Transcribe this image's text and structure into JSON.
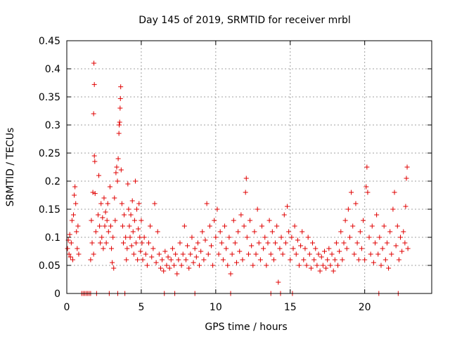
{
  "chart_data": {
    "type": "scatter",
    "title": "Day 145 of 2019, SRMTID for receiver mrbl",
    "xlabel": "GPS time / hours",
    "ylabel": "SRMTID / TECUs",
    "xlim": [
      0,
      24.5
    ],
    "ylim": [
      0,
      0.45
    ],
    "xticks": [
      0,
      5,
      10,
      15,
      20
    ],
    "xtick_labels": [
      "0",
      "5",
      "10",
      "15",
      "20"
    ],
    "yticks": [
      0,
      0.05,
      0.1,
      0.15,
      0.2,
      0.25,
      0.3,
      0.35,
      0.4,
      0.45
    ],
    "ytick_labels": [
      "0",
      "0.05",
      "0.1",
      "0.15",
      "0.2",
      "0.25",
      "0.3",
      "0.35",
      "0.4",
      "0.45"
    ],
    "grid": true,
    "marker": "+",
    "color": "#e00000",
    "series": [
      {
        "name": "SRMTID",
        "points": [
          [
            0.05,
            0.08
          ],
          [
            0.1,
            0.095
          ],
          [
            0.15,
            0.07
          ],
          [
            0.2,
            0.105
          ],
          [
            0.25,
            0.065
          ],
          [
            0.3,
            0.09
          ],
          [
            0.35,
            0.13
          ],
          [
            0.4,
            0.06
          ],
          [
            0.45,
            0.14
          ],
          [
            0.5,
            0.175
          ],
          [
            0.55,
            0.19
          ],
          [
            0.6,
            0.16
          ],
          [
            0.65,
            0.11
          ],
          [
            0.7,
            0.08
          ],
          [
            0.75,
            0.12
          ],
          [
            0.8,
            0.07
          ],
          [
            1.0,
            0.0
          ],
          [
            1.1,
            0.0
          ],
          [
            1.2,
            0.0
          ],
          [
            1.3,
            0.0
          ],
          [
            1.4,
            0.0
          ],
          [
            1.5,
            0.0
          ],
          [
            1.6,
            0.0
          ],
          [
            1.6,
            0.06
          ],
          [
            1.65,
            0.13
          ],
          [
            1.7,
            0.09
          ],
          [
            1.75,
            0.18
          ],
          [
            1.8,
            0.07
          ],
          [
            1.8,
            0.32
          ],
          [
            1.82,
            0.41
          ],
          [
            1.85,
            0.372
          ],
          [
            1.85,
            0.245
          ],
          [
            1.88,
            0.235
          ],
          [
            1.9,
            0.178
          ],
          [
            1.95,
            0.11
          ],
          [
            2.0,
            0.0
          ],
          [
            2.1,
            0.14
          ],
          [
            2.15,
            0.21
          ],
          [
            2.2,
            0.12
          ],
          [
            2.25,
            0.09
          ],
          [
            2.3,
            0.16
          ],
          [
            2.35,
            0.1
          ],
          [
            2.4,
            0.135
          ],
          [
            2.45,
            0.08
          ],
          [
            2.5,
            0.17
          ],
          [
            2.55,
            0.12
          ],
          [
            2.6,
            0.145
          ],
          [
            2.65,
            0.09
          ],
          [
            2.7,
            0.13
          ],
          [
            2.75,
            0.16
          ],
          [
            2.8,
            0.11
          ],
          [
            2.85,
            0.0
          ],
          [
            2.9,
            0.19
          ],
          [
            2.95,
            0.12
          ],
          [
            3.0,
            0.08
          ],
          [
            3.05,
            0.055
          ],
          [
            3.1,
            0.1
          ],
          [
            3.15,
            0.045
          ],
          [
            3.2,
            0.17
          ],
          [
            3.25,
            0.13
          ],
          [
            3.3,
            0.215
          ],
          [
            3.35,
            0.225
          ],
          [
            3.4,
            0.2
          ],
          [
            3.42,
            0.0
          ],
          [
            3.45,
            0.24
          ],
          [
            3.5,
            0.285
          ],
          [
            3.52,
            0.3
          ],
          [
            3.55,
            0.305
          ],
          [
            3.58,
            0.33
          ],
          [
            3.6,
            0.347
          ],
          [
            3.62,
            0.368
          ],
          [
            3.65,
            0.22
          ],
          [
            3.7,
            0.16
          ],
          [
            3.75,
            0.12
          ],
          [
            3.8,
            0.09
          ],
          [
            3.85,
            0.14
          ],
          [
            3.9,
            0.0
          ],
          [
            3.95,
            0.1
          ],
          [
            4.0,
            0.06
          ],
          [
            4.05,
            0.08
          ],
          [
            4.1,
            0.195
          ],
          [
            4.15,
            0.15
          ],
          [
            4.2,
            0.12
          ],
          [
            4.25,
            0.1
          ],
          [
            4.3,
            0.14
          ],
          [
            4.35,
            0.085
          ],
          [
            4.4,
            0.165
          ],
          [
            4.45,
            0.11
          ],
          [
            4.5,
            0.07
          ],
          [
            4.55,
            0.13
          ],
          [
            4.6,
            0.2
          ],
          [
            4.65,
            0.09
          ],
          [
            4.7,
            0.15
          ],
          [
            4.75,
            0.06
          ],
          [
            4.8,
            0.115
          ],
          [
            4.85,
            0.16
          ],
          [
            4.9,
            0.1
          ],
          [
            4.95,
            0.075
          ],
          [
            5.0,
            0.13
          ],
          [
            5.05,
            0.09
          ],
          [
            5.1,
            0.06
          ],
          [
            5.2,
            0.1
          ],
          [
            5.3,
            0.07
          ],
          [
            5.4,
            0.05
          ],
          [
            5.5,
            0.09
          ],
          [
            5.6,
            0.12
          ],
          [
            5.7,
            0.065
          ],
          [
            5.8,
            0.08
          ],
          [
            5.9,
            0.16
          ],
          [
            6.0,
            0.055
          ],
          [
            6.1,
            0.11
          ],
          [
            6.2,
            0.07
          ],
          [
            6.3,
            0.045
          ],
          [
            6.4,
            0.06
          ],
          [
            6.5,
            0.04
          ],
          [
            6.6,
            0.075
          ],
          [
            6.7,
            0.05
          ],
          [
            6.8,
            0.065
          ],
          [
            6.9,
            0.045
          ],
          [
            7.0,
            0.06
          ],
          [
            7.1,
            0.08
          ],
          [
            7.2,
            0.05
          ],
          [
            7.3,
            0.07
          ],
          [
            7.4,
            0.035
          ],
          [
            7.5,
            0.06
          ],
          [
            7.6,
            0.09
          ],
          [
            7.7,
            0.05
          ],
          [
            7.8,
            0.07
          ],
          [
            7.9,
            0.12
          ],
          [
            8.0,
            0.06
          ],
          [
            8.1,
            0.085
          ],
          [
            8.2,
            0.045
          ],
          [
            8.3,
            0.07
          ],
          [
            8.4,
            0.1
          ],
          [
            8.5,
            0.055
          ],
          [
            8.6,
            0.08
          ],
          [
            8.7,
            0.065
          ],
          [
            8.8,
            0.09
          ],
          [
            8.9,
            0.05
          ],
          [
            9.0,
            0.075
          ],
          [
            9.1,
            0.11
          ],
          [
            9.2,
            0.06
          ],
          [
            9.3,
            0.095
          ],
          [
            9.4,
            0.16
          ],
          [
            9.5,
            0.07
          ],
          [
            9.6,
            0.12
          ],
          [
            9.7,
            0.085
          ],
          [
            9.8,
            0.05
          ],
          [
            9.9,
            0.13
          ],
          [
            10.0,
            0.1
          ],
          [
            10.1,
            0.15
          ],
          [
            10.2,
            0.07
          ],
          [
            10.3,
            0.11
          ],
          [
            10.4,
            0.09
          ],
          [
            10.5,
            0.06
          ],
          [
            10.6,
            0.12
          ],
          [
            10.7,
            0.08
          ],
          [
            10.8,
            0.05
          ],
          [
            10.9,
            0.1
          ],
          [
            11.0,
            0.035
          ],
          [
            11.1,
            0.07
          ],
          [
            11.2,
            0.13
          ],
          [
            11.3,
            0.09
          ],
          [
            11.4,
            0.055
          ],
          [
            11.5,
            0.11
          ],
          [
            11.6,
            0.075
          ],
          [
            11.7,
            0.14
          ],
          [
            11.8,
            0.06
          ],
          [
            11.9,
            0.12
          ],
          [
            12.0,
            0.18
          ],
          [
            12.05,
            0.205
          ],
          [
            12.1,
            0.1
          ],
          [
            12.2,
            0.07
          ],
          [
            12.3,
            0.13
          ],
          [
            12.4,
            0.085
          ],
          [
            12.5,
            0.05
          ],
          [
            12.6,
            0.11
          ],
          [
            12.7,
            0.07
          ],
          [
            12.8,
            0.15
          ],
          [
            12.9,
            0.09
          ],
          [
            13.0,
            0.06
          ],
          [
            13.1,
            0.12
          ],
          [
            13.2,
            0.08
          ],
          [
            13.3,
            0.1
          ],
          [
            13.4,
            0.05
          ],
          [
            13.5,
            0.09
          ],
          [
            13.6,
            0.13
          ],
          [
            13.7,
            0.07
          ],
          [
            13.8,
            0.11
          ],
          [
            13.9,
            0.06
          ],
          [
            14.0,
            0.09
          ],
          [
            14.1,
            0.12
          ],
          [
            14.2,
            0.02
          ],
          [
            14.3,
            0.08
          ],
          [
            14.4,
            0.1
          ],
          [
            14.5,
            0.07
          ],
          [
            14.6,
            0.14
          ],
          [
            14.7,
            0.09
          ],
          [
            14.8,
            0.155
          ],
          [
            14.9,
            0.11
          ],
          [
            15.0,
            0.06
          ],
          [
            15.1,
            0.1
          ],
          [
            15.2,
            0.08
          ],
          [
            15.3,
            0.12
          ],
          [
            15.4,
            0.07
          ],
          [
            15.5,
            0.095
          ],
          [
            15.6,
            0.05
          ],
          [
            15.7,
            0.085
          ],
          [
            15.8,
            0.11
          ],
          [
            15.9,
            0.06
          ],
          [
            16.0,
            0.08
          ],
          [
            16.1,
            0.05
          ],
          [
            16.2,
            0.1
          ],
          [
            16.3,
            0.07
          ],
          [
            16.4,
            0.045
          ],
          [
            16.5,
            0.09
          ],
          [
            16.6,
            0.06
          ],
          [
            16.7,
            0.08
          ],
          [
            16.8,
            0.05
          ],
          [
            16.9,
            0.07
          ],
          [
            17.0,
            0.04
          ],
          [
            17.1,
            0.065
          ],
          [
            17.2,
            0.05
          ],
          [
            17.3,
            0.075
          ],
          [
            17.4,
            0.045
          ],
          [
            17.5,
            0.06
          ],
          [
            17.6,
            0.08
          ],
          [
            17.7,
            0.05
          ],
          [
            17.8,
            0.07
          ],
          [
            17.9,
            0.04
          ],
          [
            18.0,
            0.06
          ],
          [
            18.1,
            0.09
          ],
          [
            18.2,
            0.05
          ],
          [
            18.3,
            0.075
          ],
          [
            18.4,
            0.11
          ],
          [
            18.5,
            0.06
          ],
          [
            18.6,
            0.09
          ],
          [
            18.7,
            0.13
          ],
          [
            18.8,
            0.08
          ],
          [
            18.9,
            0.15
          ],
          [
            19.0,
            0.1
          ],
          [
            19.1,
            0.18
          ],
          [
            19.2,
            0.12
          ],
          [
            19.3,
            0.07
          ],
          [
            19.4,
            0.16
          ],
          [
            19.5,
            0.09
          ],
          [
            19.6,
            0.06
          ],
          [
            19.7,
            0.11
          ],
          [
            19.8,
            0.08
          ],
          [
            19.9,
            0.13
          ],
          [
            20.0,
            0.06
          ],
          [
            20.1,
            0.19
          ],
          [
            20.15,
            0.225
          ],
          [
            20.2,
            0.18
          ],
          [
            20.3,
            0.1
          ],
          [
            20.4,
            0.07
          ],
          [
            20.5,
            0.12
          ],
          [
            20.6,
            0.055
          ],
          [
            20.7,
            0.09
          ],
          [
            20.8,
            0.14
          ],
          [
            20.9,
            0.07
          ],
          [
            21.0,
            0.1
          ],
          [
            21.1,
            0.05
          ],
          [
            21.2,
            0.08
          ],
          [
            21.3,
            0.12
          ],
          [
            21.4,
            0.06
          ],
          [
            21.5,
            0.09
          ],
          [
            21.6,
            0.045
          ],
          [
            21.7,
            0.11
          ],
          [
            21.8,
            0.07
          ],
          [
            21.9,
            0.15
          ],
          [
            22.0,
            0.18
          ],
          [
            22.1,
            0.085
          ],
          [
            22.2,
            0.12
          ],
          [
            22.3,
            0.06
          ],
          [
            22.4,
            0.1
          ],
          [
            22.5,
            0.075
          ],
          [
            22.6,
            0.11
          ],
          [
            22.7,
            0.09
          ],
          [
            22.75,
            0.155
          ],
          [
            22.8,
            0.205
          ],
          [
            22.85,
            0.225
          ],
          [
            22.9,
            0.08
          ],
          [
            6.55,
            0.0
          ],
          [
            7.25,
            0.0
          ],
          [
            8.6,
            0.0
          ],
          [
            11.0,
            0.0
          ],
          [
            13.7,
            0.0
          ],
          [
            14.35,
            0.0
          ],
          [
            15.15,
            0.0
          ],
          [
            20.95,
            0.0
          ],
          [
            22.25,
            0.0
          ]
        ]
      }
    ]
  }
}
